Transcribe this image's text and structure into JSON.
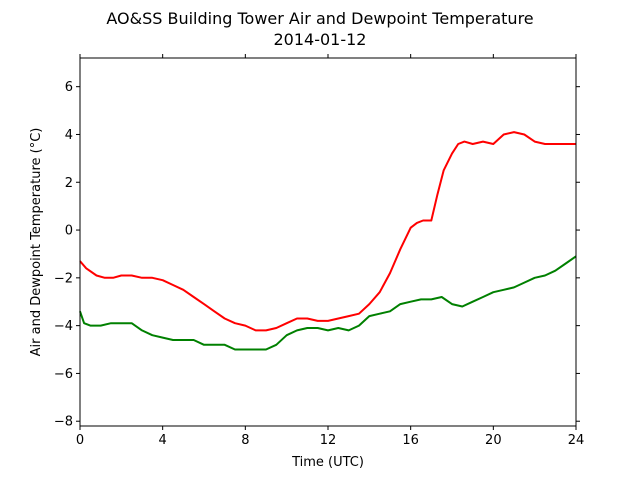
{
  "chart_data": {
    "type": "line",
    "title": "AO&SS Building Tower Air and Dewpoint Temperature",
    "subtitle": "2014-01-12",
    "xlabel": "Time (UTC)",
    "ylabel": "Air and Dewpoint Temperature (°C)",
    "xlim": [
      0,
      24
    ],
    "ylim": [
      -8.2,
      7.2
    ],
    "xticks": [
      0,
      4,
      8,
      12,
      16,
      20,
      24
    ],
    "yticks": [
      -8,
      -6,
      -4,
      -2,
      0,
      2,
      4,
      6
    ],
    "grid": false,
    "legend": "none",
    "series": [
      {
        "color": "#ff0000",
        "x": [
          0,
          0.3,
          0.8,
          1.2,
          1.6,
          2.0,
          2.5,
          3.0,
          3.5,
          4.0,
          4.5,
          5.0,
          5.5,
          6.0,
          6.5,
          7.0,
          7.5,
          8.0,
          8.5,
          9.0,
          9.5,
          10.0,
          10.5,
          11.0,
          11.5,
          12.0,
          12.5,
          13.0,
          13.5,
          14.0,
          14.5,
          15.0,
          15.5,
          16.0,
          16.3,
          16.6,
          17.0,
          17.3,
          17.6,
          18.0,
          18.3,
          18.6,
          19.0,
          19.5,
          20.0,
          20.5,
          21.0,
          21.5,
          22.0,
          22.5,
          23.0,
          23.5,
          24.0
        ],
        "values": [
          -1.3,
          -1.6,
          -1.9,
          -2.0,
          -2.0,
          -1.9,
          -1.9,
          -2.0,
          -2.0,
          -2.1,
          -2.3,
          -2.5,
          -2.8,
          -3.1,
          -3.4,
          -3.7,
          -3.9,
          -4.0,
          -4.2,
          -4.2,
          -4.1,
          -3.9,
          -3.7,
          -3.7,
          -3.8,
          -3.8,
          -3.7,
          -3.6,
          -3.5,
          -3.1,
          -2.6,
          -1.8,
          -0.8,
          0.1,
          0.3,
          0.4,
          0.4,
          1.5,
          2.5,
          3.2,
          3.6,
          3.7,
          3.6,
          3.7,
          3.6,
          4.0,
          4.1,
          4.0,
          3.7,
          3.6,
          3.6,
          3.6,
          3.6
        ]
      },
      {
        "color": "#008000",
        "x": [
          0,
          0.2,
          0.5,
          1.0,
          1.5,
          2.0,
          2.5,
          3.0,
          3.5,
          4.0,
          4.5,
          5.0,
          5.5,
          6.0,
          6.5,
          7.0,
          7.5,
          8.0,
          8.5,
          9.0,
          9.5,
          10.0,
          10.5,
          11.0,
          11.5,
          12.0,
          12.5,
          13.0,
          13.5,
          14.0,
          14.5,
          15.0,
          15.5,
          16.0,
          16.5,
          17.0,
          17.5,
          18.0,
          18.5,
          19.0,
          19.5,
          20.0,
          20.5,
          21.0,
          21.5,
          22.0,
          22.5,
          23.0,
          23.5,
          24.0
        ],
        "values": [
          -3.4,
          -3.9,
          -4.0,
          -4.0,
          -3.9,
          -3.9,
          -3.9,
          -4.2,
          -4.4,
          -4.5,
          -4.6,
          -4.6,
          -4.6,
          -4.8,
          -4.8,
          -4.8,
          -5.0,
          -5.0,
          -5.0,
          -5.0,
          -4.8,
          -4.4,
          -4.2,
          -4.1,
          -4.1,
          -4.2,
          -4.1,
          -4.2,
          -4.0,
          -3.6,
          -3.5,
          -3.4,
          -3.1,
          -3.0,
          -2.9,
          -2.9,
          -2.8,
          -3.1,
          -3.2,
          -3.0,
          -2.8,
          -2.6,
          -2.5,
          -2.4,
          -2.2,
          -2.0,
          -1.9,
          -1.7,
          -1.4,
          -1.1
        ]
      }
    ]
  }
}
